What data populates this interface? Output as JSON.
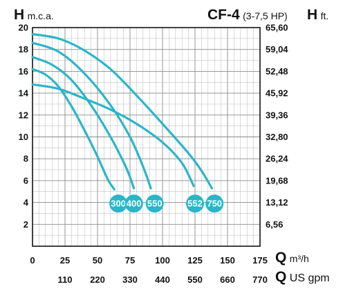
{
  "header": {
    "left_axis_symbol": "H",
    "left_axis_unit": "m.c.a.",
    "model": "CF-4",
    "model_power": "(3-7,5 HP)",
    "right_axis_symbol": "H",
    "right_axis_unit": "ft."
  },
  "footer": {
    "primary_axis_symbol": "Q",
    "primary_axis_unit": "m³/h",
    "secondary_axis_symbol": "Q",
    "secondary_axis_unit": "US gpm"
  },
  "colors": {
    "curve": "#29b6c8",
    "badge": "#29b6c8",
    "grid": "#b5b5b5",
    "frame": "#111111"
  },
  "chart_data": {
    "type": "line",
    "xlim": [
      0,
      175
    ],
    "ylim": [
      0,
      20
    ],
    "grid": true,
    "x_ticks": [
      "0",
      "25",
      "50",
      "75",
      "100",
      "125",
      "150",
      "175"
    ],
    "x_ticks_secondary": [
      "110",
      "220",
      "330",
      "440",
      "550",
      "660",
      "770"
    ],
    "y_ticks_left": [
      "2",
      "4",
      "6",
      "8",
      "10",
      "12",
      "14",
      "16",
      "18",
      "20"
    ],
    "y_ticks_right": [
      "6,56",
      "13,12",
      "19,68",
      "26,24",
      "32,80",
      "39,36",
      "45,92",
      "52,48",
      "59,04",
      "65,60"
    ],
    "series": [
      {
        "name": "300",
        "points": [
          [
            0,
            16.2
          ],
          [
            10,
            15.7
          ],
          [
            20,
            14.6
          ],
          [
            30,
            12.8
          ],
          [
            40,
            10.6
          ],
          [
            50,
            8.2
          ],
          [
            58,
            6.1
          ],
          [
            63,
            5.2
          ]
        ]
      },
      {
        "name": "400",
        "points": [
          [
            0,
            17.3
          ],
          [
            15,
            16.6
          ],
          [
            30,
            15.2
          ],
          [
            45,
            12.9
          ],
          [
            60,
            10.0
          ],
          [
            72,
            7.2
          ],
          [
            78,
            5.3
          ]
        ]
      },
      {
        "name": "550",
        "points": [
          [
            0,
            18.6
          ],
          [
            20,
            17.8
          ],
          [
            40,
            15.8
          ],
          [
            60,
            12.9
          ],
          [
            75,
            10.0
          ],
          [
            85,
            7.3
          ],
          [
            91,
            5.3
          ]
        ]
      },
      {
        "name": "552",
        "points": [
          [
            0,
            14.8
          ],
          [
            20,
            14.4
          ],
          [
            40,
            13.5
          ],
          [
            60,
            12.5
          ],
          [
            80,
            11.2
          ],
          [
            100,
            9.5
          ],
          [
            115,
            7.6
          ],
          [
            124,
            5.5
          ]
        ]
      },
      {
        "name": "750",
        "points": [
          [
            0,
            19.4
          ],
          [
            20,
            19.0
          ],
          [
            40,
            17.9
          ],
          [
            60,
            16.2
          ],
          [
            80,
            13.8
          ],
          [
            100,
            11.2
          ],
          [
            120,
            8.5
          ],
          [
            130,
            6.9
          ],
          [
            138,
            5.3
          ]
        ]
      }
    ],
    "badges": [
      {
        "label": "300",
        "x": 66,
        "y": 3.9
      },
      {
        "label": "400",
        "x": 78,
        "y": 3.9
      },
      {
        "label": "550",
        "x": 94,
        "y": 3.9
      },
      {
        "label": "552",
        "x": 125,
        "y": 3.9
      },
      {
        "label": "750",
        "x": 140,
        "y": 3.9
      }
    ]
  }
}
